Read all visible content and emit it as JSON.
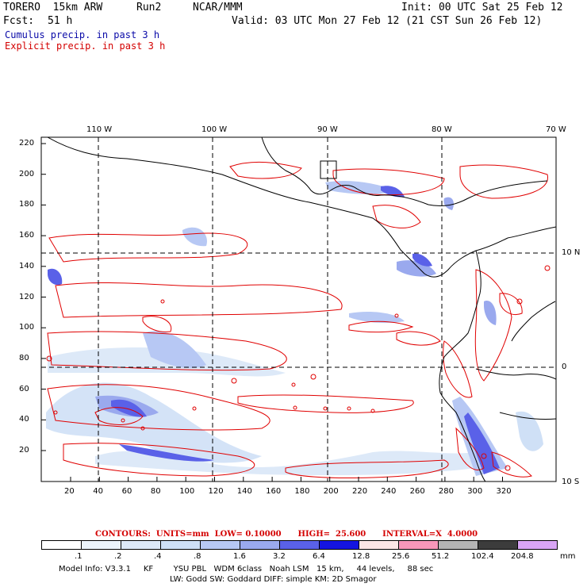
{
  "header": {
    "model": "TORERO  15km ARW",
    "run": "Run2",
    "org": "NCAR/MMM",
    "init": "Init: 00 UTC Sat 25 Feb 12",
    "fcst_label": "Fcst:",
    "fcst_value": "51 h",
    "valid": "Valid: 03 UTC Mon 27 Feb 12 (21 CST Sun 26 Feb 12)",
    "cumulus": "Cumulus precip. in past 3 h",
    "explicit": "Explicit precip. in past 3 h"
  },
  "map": {
    "top_lon_labels": [
      "110 W",
      "100 W",
      "90 W",
      "80 W",
      "70 W"
    ],
    "right_lat_labels": [
      "10 N",
      "0",
      "10 S"
    ],
    "y_grid_labels": [
      "220",
      "200",
      "180",
      "160",
      "140",
      "120",
      "100",
      "80",
      "60",
      "40",
      "20"
    ],
    "x_grid_labels": [
      "20",
      "40",
      "60",
      "80",
      "100",
      "120",
      "140",
      "160",
      "180",
      "200",
      "220",
      "240",
      "260",
      "280",
      "300",
      "320"
    ]
  },
  "contours": {
    "text": "CONTOURS:  UNITS=mm  LOW= 0.10000      HIGH=  25.600      INTERVAL=X  4.0000"
  },
  "colorbar": {
    "labels": [
      ".1",
      ".2",
      ".4",
      ".8",
      "1.6",
      "3.2",
      "6.4",
      "12.8",
      "25.6",
      "51.2",
      "102.4",
      "204.8"
    ],
    "units": "mm",
    "colors": [
      "#ffffff",
      "#ecf4fb",
      "#dde9f8",
      "#cfe0f6",
      "#b7c8f4",
      "#9aa9ee",
      "#5a61e8",
      "#1414e0",
      "#fce6e6",
      "#f797ba",
      "#b4b4b4",
      "#3c3c3c",
      "#d9a5f5"
    ]
  },
  "model_info": {
    "line1": "Model Info: V3.3.1     KF        YSU PBL   WDM 6class   Noah LSM   15 km,     44 levels,     88 sec",
    "line2": "LW: Godd SW: Goddard DIFF: simple KM: 2D Smagor"
  }
}
